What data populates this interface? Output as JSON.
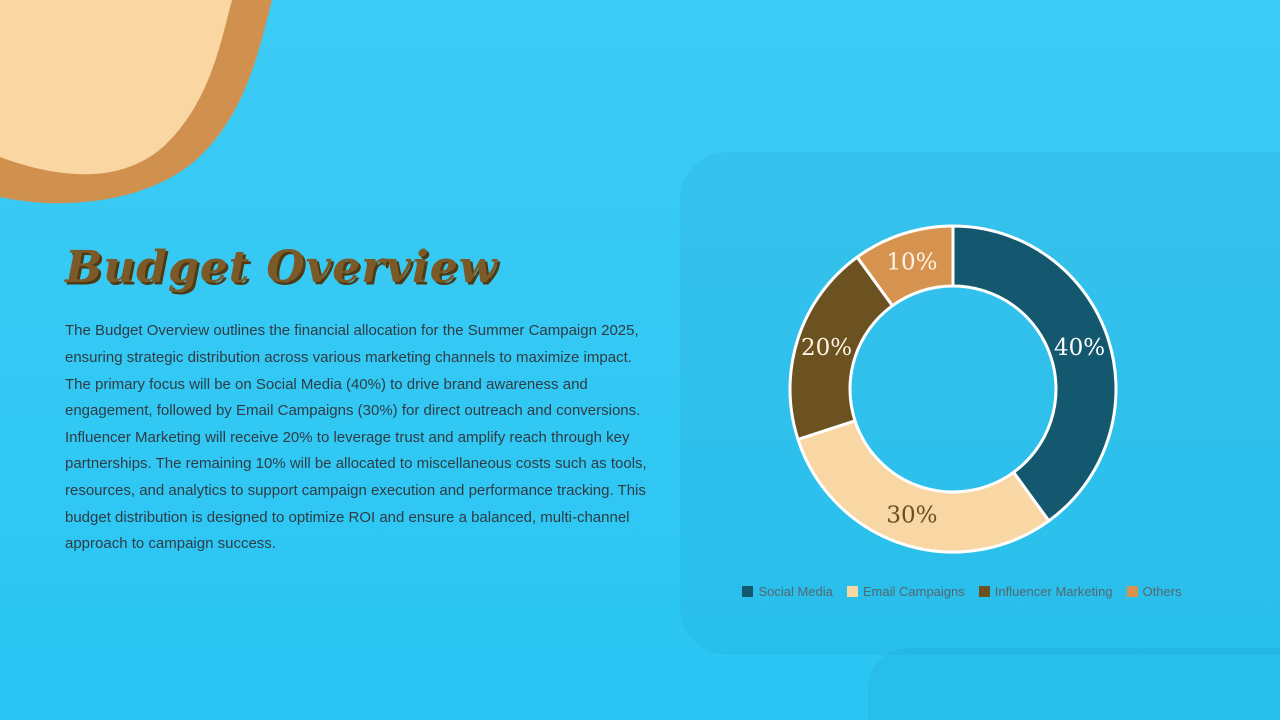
{
  "slide": {
    "title": "Budget Overview",
    "body": "The Budget Overview outlines the financial allocation for the Summer Campaign 2025, ensuring strategic distribution across various marketing channels to maximize impact. The primary focus will be on Social Media (40%) to drive brand awareness and engagement, followed by Email Campaigns (30%) for direct outreach and conversions. Influencer Marketing will receive 20% to leverage trust and amplify reach through key partnerships. The remaining 10% will be allocated to miscellaneous costs such as tools, resources, and analytics to support campaign execution and performance tracking. This budget distribution is designed to optimize ROI and ensure a balanced, multi-channel approach to campaign success."
  },
  "chart_data": {
    "type": "pie",
    "subtype": "donut",
    "title": "",
    "categories": [
      "Social Media",
      "Email Campaigns",
      "Influencer Marketing",
      "Others"
    ],
    "values": [
      40,
      30,
      20,
      10
    ],
    "slice_labels": [
      "40%",
      "30%",
      "20%",
      "10%"
    ],
    "colors": [
      "#14586F",
      "#F9D7A4",
      "#6B5220",
      "#D6934F"
    ],
    "slice_label_colors": [
      "#FFFFFF",
      "#6A4E1E",
      "#FDF4E3",
      "#FDF4E3"
    ],
    "slice_stroke": "#FFFFFF",
    "start_angle_deg": 0,
    "direction": "clockwise",
    "legend_position": "bottom"
  },
  "colors": {
    "background_top": "#3CCBF5",
    "background_bottom": "#29C5F3",
    "panel_tint": "rgba(16,96,140,0.07)",
    "wave_fill": "#FAD7A2",
    "wave_band": "#D1914E",
    "title_color": "#7B5A27",
    "title_shadow": "#503A13",
    "body_text_color": "#2F3C44",
    "legend_text_color": "#54666F"
  }
}
